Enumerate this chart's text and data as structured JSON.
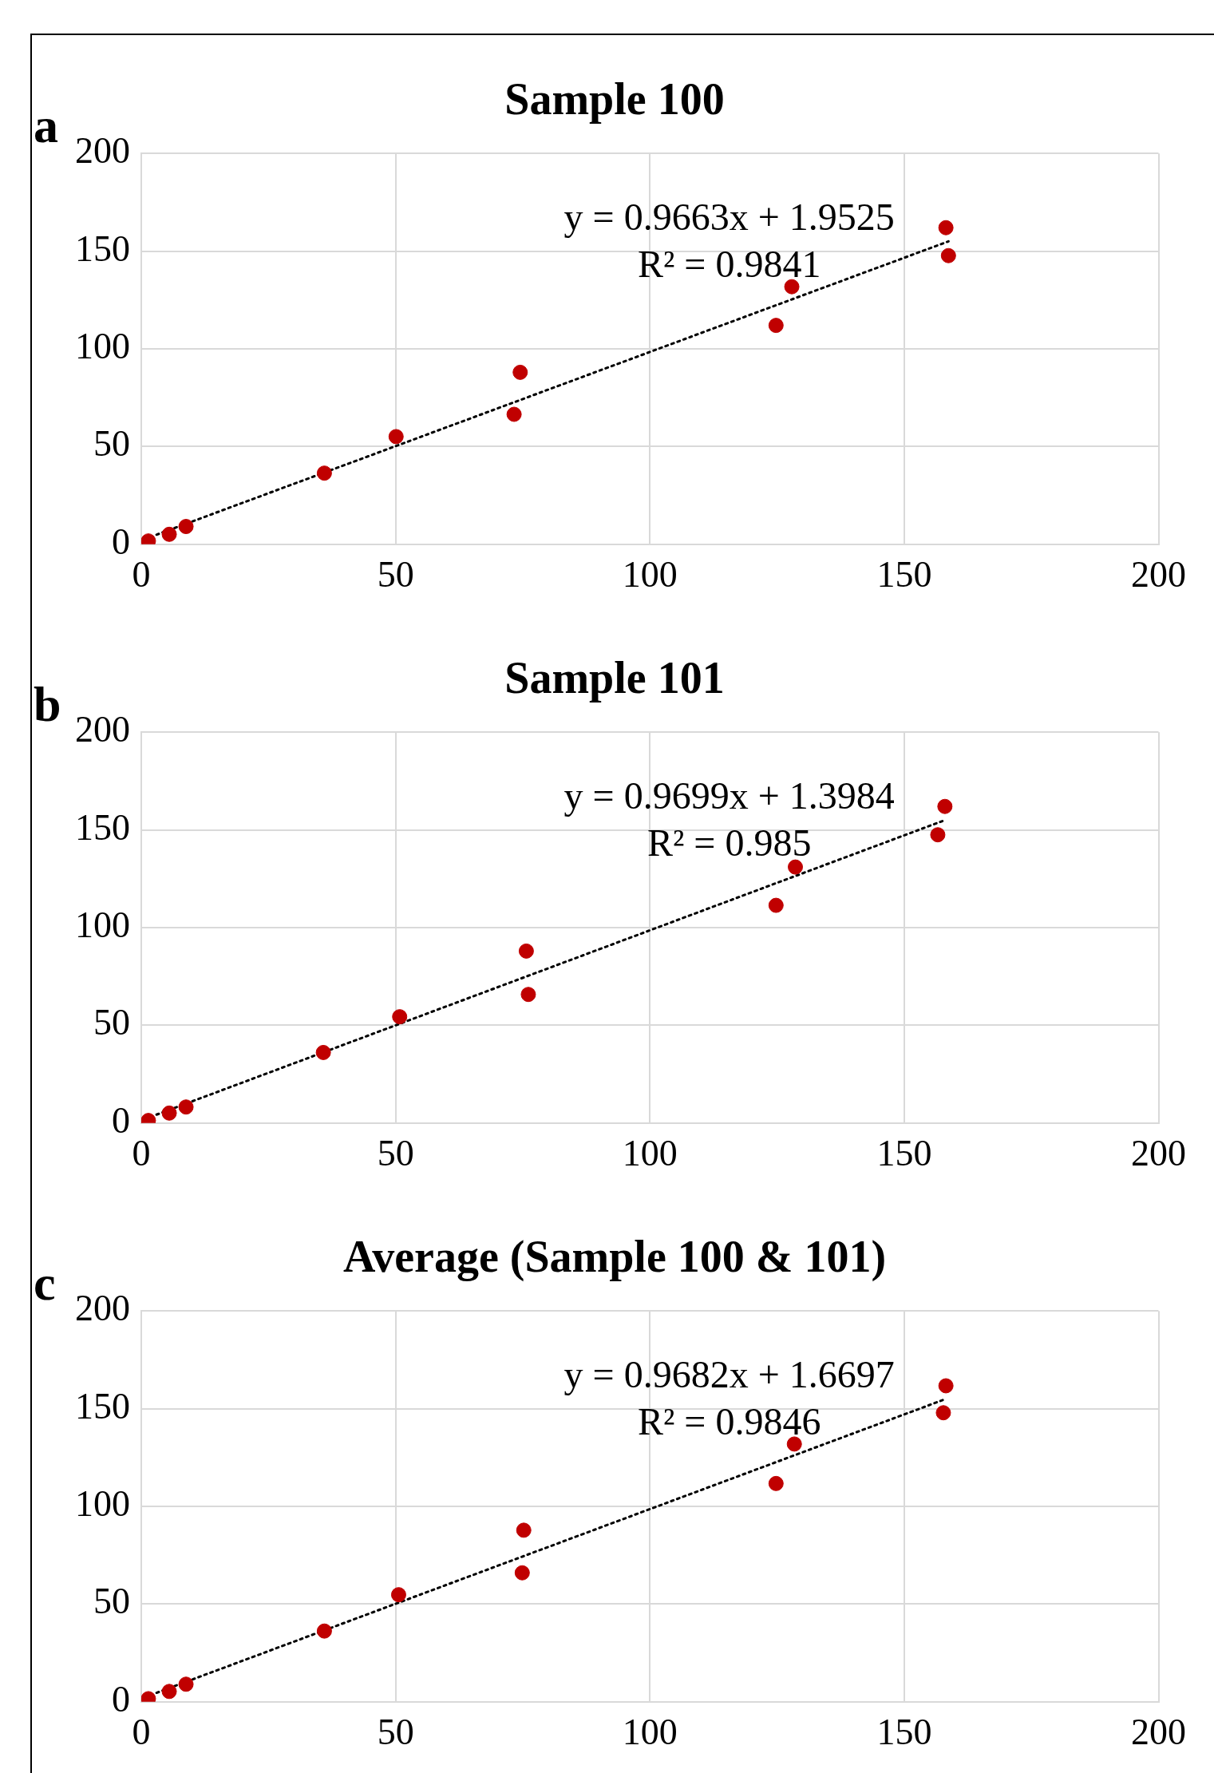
{
  "chart_data": [
    {
      "type": "scatter",
      "title": "Sample 100",
      "xlim": [
        0,
        200
      ],
      "ylim": [
        0,
        200
      ],
      "xticks": [
        0,
        50,
        100,
        150,
        200
      ],
      "yticks": [
        0,
        50,
        100,
        150,
        200
      ],
      "grid": true,
      "marker": "circle",
      "legend": false,
      "series": [
        {
          "type": "scatter",
          "color": "#c00000",
          "x": [
            1.4,
            5.5,
            8.8,
            36,
            50.1,
            73.3,
            74.5,
            124.8,
            127.9,
            158.2,
            158.7
          ],
          "values": [
            1.7,
            5.1,
            9.1,
            36.4,
            55.1,
            66.5,
            88,
            112,
            131.8,
            162,
            147.7
          ]
        },
        {
          "type": "line",
          "color": "#000000",
          "line_style": "dotted",
          "marker": "none",
          "x": [
            3,
            158.7
          ],
          "values": [
            4.9,
            155
          ]
        }
      ],
      "annotations": [
        "a",
        "y = 0.9663x + 1.9525",
        "R² = 0.9841"
      ]
    },
    {
      "type": "scatter",
      "title": "Sample 101",
      "xlim": [
        0,
        200
      ],
      "ylim": [
        0,
        200
      ],
      "xticks": [
        0,
        50,
        100,
        150,
        200
      ],
      "yticks": [
        0,
        50,
        100,
        150,
        200
      ],
      "grid": true,
      "marker": "circle",
      "legend": false,
      "series": [
        {
          "type": "scatter",
          "color": "#c00000",
          "x": [
            1.4,
            5.5,
            8.8,
            35.8,
            50.8,
            76.1,
            75.7,
            124.8,
            128.6,
            158,
            156.6
          ],
          "values": [
            1.3,
            5.1,
            8.2,
            36.1,
            54.4,
            65.8,
            88,
            111.4,
            131,
            162,
            147.5
          ]
        },
        {
          "type": "line",
          "color": "#000000",
          "line_style": "dotted",
          "marker": "none",
          "x": [
            3,
            158
          ],
          "values": [
            4.3,
            155
          ]
        }
      ],
      "annotations": [
        "b",
        "y = 0.9699x + 1.3984",
        "R² = 0.985"
      ]
    },
    {
      "type": "scatter",
      "title": "Average (Sample 100 & 101)",
      "xlim": [
        0,
        200
      ],
      "ylim": [
        0,
        200
      ],
      "xticks": [
        0,
        50,
        100,
        150,
        200
      ],
      "yticks": [
        0,
        50,
        100,
        150,
        200
      ],
      "grid": true,
      "marker": "circle",
      "legend": false,
      "series": [
        {
          "type": "scatter",
          "color": "#c00000",
          "x": [
            1.4,
            5.5,
            8.8,
            36,
            50.6,
            74.9,
            75.2,
            124.8,
            128.4,
            158.2,
            157.7
          ],
          "values": [
            1.6,
            5.3,
            9,
            36.2,
            54.8,
            66,
            87.8,
            111.7,
            131.9,
            161.7,
            147.9
          ]
        },
        {
          "type": "line",
          "color": "#000000",
          "line_style": "dotted",
          "marker": "none",
          "x": [
            3,
            158.2
          ],
          "values": [
            4.6,
            155
          ]
        }
      ],
      "annotations": [
        "c",
        "y = 0.9682x + 1.6697",
        "R² = 0.9846"
      ]
    }
  ]
}
